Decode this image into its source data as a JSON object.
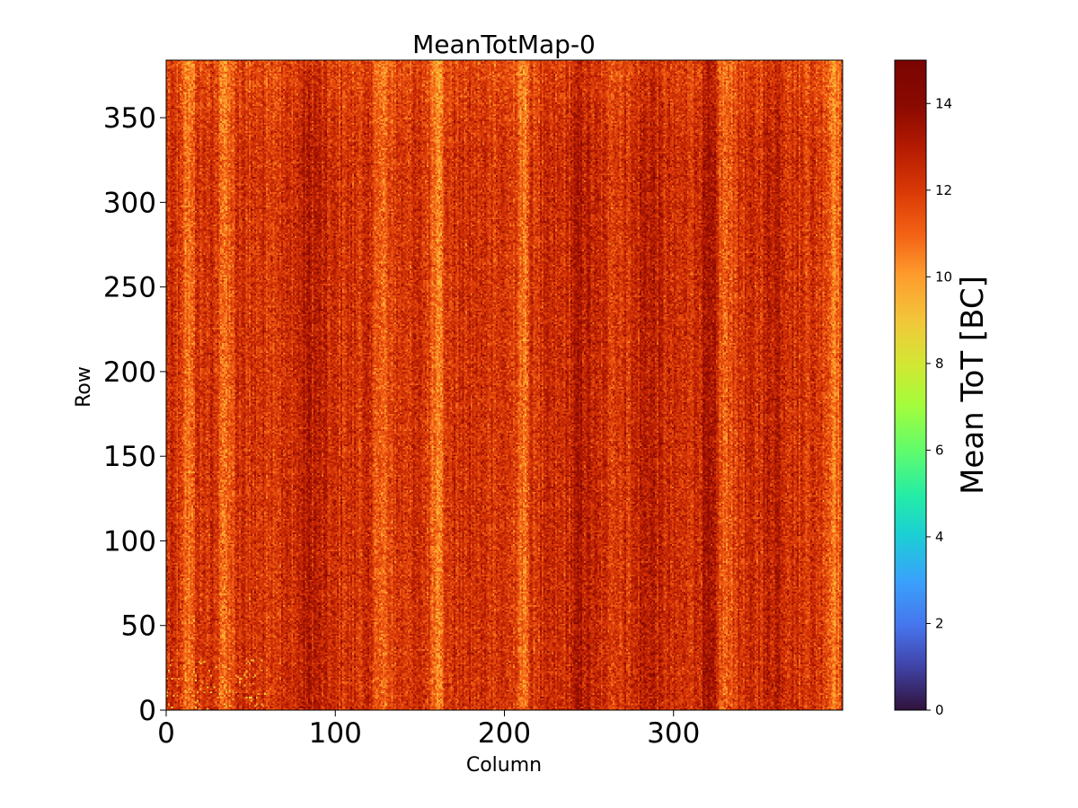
{
  "chart_data": {
    "type": "heatmap",
    "title": "MeanTotMap-0",
    "xlabel": "Column",
    "ylabel": "Row",
    "xlim": [
      0,
      400
    ],
    "ylim": [
      0,
      384
    ],
    "xticks": [
      0,
      100,
      200,
      300
    ],
    "yticks": [
      0,
      50,
      100,
      150,
      200,
      250,
      300,
      350
    ],
    "n_columns": 400,
    "n_rows": 384,
    "colorbar": {
      "label": "Mean ToT [BC]",
      "range": [
        0,
        15
      ],
      "ticks": [
        0,
        2,
        4,
        6,
        8,
        10,
        12,
        14
      ],
      "colormap": "turbo"
    },
    "value_summary": {
      "typical_range": [
        10,
        14
      ],
      "dominant_color": "#c8440f",
      "bright_column_bands": [
        12,
        35,
        128,
        160,
        210,
        330,
        395
      ],
      "dark_column_bands": [
        85,
        245,
        285,
        320,
        360
      ]
    }
  }
}
